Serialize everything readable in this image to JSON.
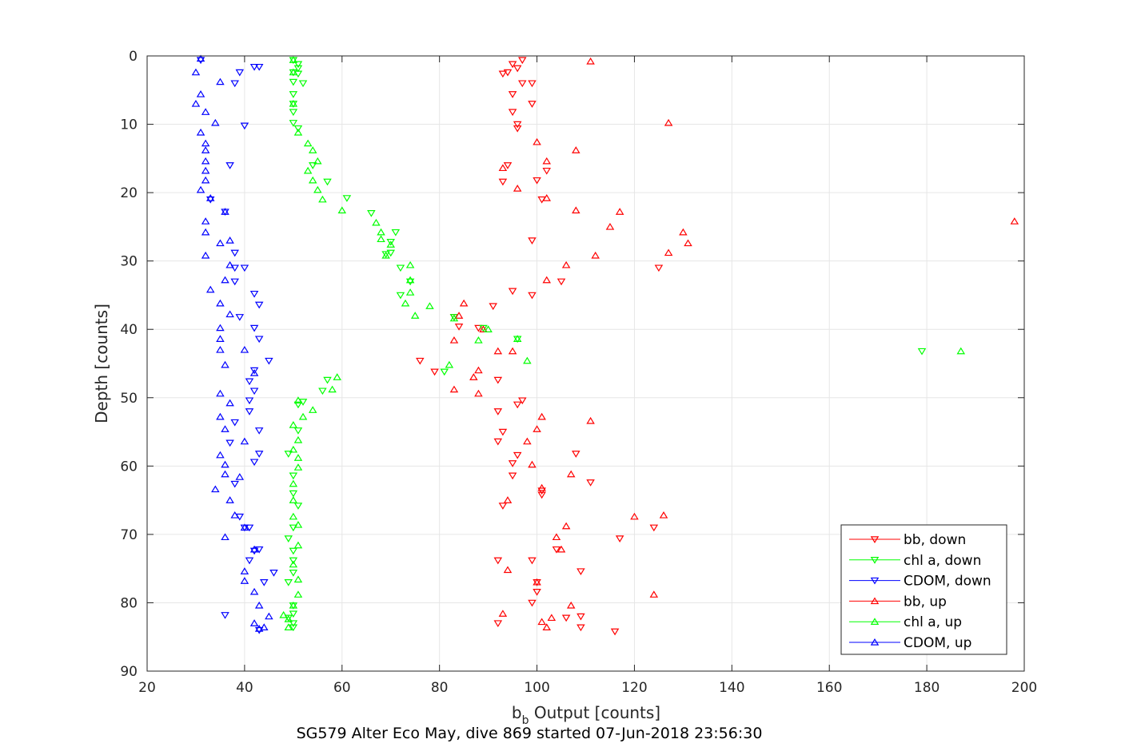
{
  "caption": "SG579 Alter Eco May, dive 869 started 07-Jun-2018 23:56:30",
  "chart_data": {
    "type": "scatter",
    "title": "",
    "xlabel_main": "b",
    "xlabel_sub": "b",
    "xlabel_rest": " Output [counts]",
    "ylabel": "Depth [counts]",
    "xlim": [
      20,
      200
    ],
    "ylim": [
      0,
      90
    ],
    "y_reversed": true,
    "grid": true,
    "legend_position": "bottom-right",
    "x_ticks": [
      20,
      40,
      60,
      80,
      100,
      120,
      140,
      160,
      180,
      200
    ],
    "y_ticks": [
      0,
      10,
      20,
      30,
      40,
      50,
      60,
      70,
      80,
      90
    ],
    "x_tick_labels": [
      "20",
      "40",
      "60",
      "80",
      "100",
      "120",
      "140",
      "160",
      "180",
      "200"
    ],
    "y_tick_labels": [
      "0",
      "10",
      "20",
      "30",
      "40",
      "50",
      "60",
      "70",
      "80",
      "90"
    ],
    "series": [
      {
        "name": "bb, down",
        "color": "#ff0000",
        "marker": "triangle-down",
        "points": [
          [
            97,
            0.6
          ],
          [
            95,
            1.2
          ],
          [
            96,
            1.8
          ],
          [
            94,
            2.4
          ],
          [
            93,
            2.6
          ],
          [
            97,
            4.0
          ],
          [
            99,
            4.0
          ],
          [
            95,
            5.6
          ],
          [
            99,
            7.0
          ],
          [
            95,
            8.2
          ],
          [
            96,
            10.0
          ],
          [
            96,
            10.6
          ],
          [
            94,
            16.0
          ],
          [
            102,
            16.8
          ],
          [
            93,
            18.4
          ],
          [
            100,
            18.2
          ],
          [
            101,
            21.0
          ],
          [
            99,
            27.0
          ],
          [
            125,
            31.0
          ],
          [
            105,
            33.0
          ],
          [
            95,
            34.4
          ],
          [
            99,
            35.0
          ],
          [
            91,
            36.6
          ],
          [
            84,
            39.6
          ],
          [
            83,
            38.2
          ],
          [
            88,
            39.8
          ],
          [
            76,
            44.6
          ],
          [
            79,
            46.2
          ],
          [
            92,
            47.4
          ],
          [
            97,
            50.4
          ],
          [
            96,
            51.0
          ],
          [
            92,
            52.0
          ],
          [
            93,
            55.0
          ],
          [
            92,
            56.4
          ],
          [
            96,
            58.4
          ],
          [
            95,
            59.6
          ],
          [
            108,
            58.2
          ],
          [
            95,
            61.4
          ],
          [
            111,
            62.4
          ],
          [
            101,
            63.6
          ],
          [
            101,
            64.2
          ],
          [
            93,
            65.8
          ],
          [
            124,
            69.0
          ],
          [
            117,
            70.6
          ],
          [
            92,
            73.8
          ],
          [
            104,
            72.2
          ],
          [
            99,
            73.8
          ],
          [
            109,
            75.4
          ],
          [
            100,
            77.0
          ],
          [
            100,
            78.4
          ],
          [
            99,
            80.0
          ],
          [
            106,
            82.2
          ],
          [
            109,
            82.0
          ],
          [
            92,
            83.0
          ],
          [
            109,
            83.6
          ],
          [
            116,
            84.2
          ]
        ]
      },
      {
        "name": "chl a, down",
        "color": "#00ff00",
        "marker": "triangle-down",
        "points": [
          [
            50,
            0.6
          ],
          [
            51,
            1.2
          ],
          [
            51,
            1.8
          ],
          [
            50,
            2.4
          ],
          [
            51,
            2.6
          ],
          [
            50,
            3.8
          ],
          [
            52,
            4.0
          ],
          [
            50,
            5.6
          ],
          [
            50,
            7.0
          ],
          [
            50,
            8.2
          ],
          [
            50,
            9.8
          ],
          [
            51,
            10.6
          ],
          [
            54,
            16.0
          ],
          [
            57,
            18.4
          ],
          [
            61,
            20.8
          ],
          [
            66,
            23.0
          ],
          [
            71,
            25.8
          ],
          [
            70,
            27.2
          ],
          [
            70,
            28.8
          ],
          [
            69,
            29.0
          ],
          [
            72,
            31.0
          ],
          [
            74,
            33.0
          ],
          [
            72,
            35.0
          ],
          [
            83,
            38.2
          ],
          [
            89,
            39.8
          ],
          [
            96,
            41.4
          ],
          [
            81,
            46.2
          ],
          [
            57,
            47.4
          ],
          [
            56,
            49.0
          ],
          [
            52,
            50.6
          ],
          [
            51,
            51.0
          ],
          [
            51,
            54.8
          ],
          [
            49,
            58.2
          ],
          [
            50,
            61.4
          ],
          [
            50,
            64.0
          ],
          [
            51,
            65.8
          ],
          [
            50,
            69.0
          ],
          [
            49,
            70.6
          ],
          [
            50,
            72.4
          ],
          [
            50,
            73.8
          ],
          [
            50,
            75.6
          ],
          [
            49,
            77.0
          ],
          [
            50,
            80.4
          ],
          [
            50,
            81.6
          ],
          [
            49,
            82.2
          ],
          [
            50,
            83.0
          ],
          [
            50,
            83.6
          ],
          [
            179,
            43.2
          ]
        ]
      },
      {
        "name": "CDOM, down",
        "color": "#0000ff",
        "marker": "triangle-down",
        "points": [
          [
            31,
            0.6
          ],
          [
            42,
            1.6
          ],
          [
            43,
            1.6
          ],
          [
            39,
            2.4
          ],
          [
            38,
            4.0
          ],
          [
            40,
            10.2
          ],
          [
            37,
            16.0
          ],
          [
            33,
            21.0
          ],
          [
            36,
            22.8
          ],
          [
            38,
            28.8
          ],
          [
            38,
            31.0
          ],
          [
            40,
            31.0
          ],
          [
            38,
            33.0
          ],
          [
            42,
            34.8
          ],
          [
            43,
            36.4
          ],
          [
            39,
            38.2
          ],
          [
            42,
            39.8
          ],
          [
            43,
            41.4
          ],
          [
            45,
            44.6
          ],
          [
            42,
            46.0
          ],
          [
            41,
            47.6
          ],
          [
            41,
            50.4
          ],
          [
            42,
            49.0
          ],
          [
            38,
            53.6
          ],
          [
            41,
            52.0
          ],
          [
            43,
            54.8
          ],
          [
            37,
            56.6
          ],
          [
            42,
            59.4
          ],
          [
            43,
            58.2
          ],
          [
            38,
            62.6
          ],
          [
            39,
            67.4
          ],
          [
            41,
            69.0
          ],
          [
            40,
            69.0
          ],
          [
            42,
            72.4
          ],
          [
            43,
            72.2
          ],
          [
            41,
            73.8
          ],
          [
            46,
            75.6
          ],
          [
            44,
            77.0
          ],
          [
            36,
            81.8
          ],
          [
            43,
            84.0
          ]
        ]
      },
      {
        "name": "bb, up",
        "color": "#ff0000",
        "marker": "triangle-up",
        "points": [
          [
            111,
            0.8
          ],
          [
            127,
            9.8
          ],
          [
            100,
            12.6
          ],
          [
            108,
            13.8
          ],
          [
            102,
            15.4
          ],
          [
            93,
            16.4
          ],
          [
            96,
            19.4
          ],
          [
            102,
            20.8
          ],
          [
            108,
            22.6
          ],
          [
            117,
            22.8
          ],
          [
            115,
            25.0
          ],
          [
            130,
            25.8
          ],
          [
            198,
            24.2
          ],
          [
            131,
            27.4
          ],
          [
            127,
            28.8
          ],
          [
            112,
            29.2
          ],
          [
            106,
            30.6
          ],
          [
            102,
            32.8
          ],
          [
            85,
            36.2
          ],
          [
            84,
            38.0
          ],
          [
            89,
            40.0
          ],
          [
            92,
            43.2
          ],
          [
            95,
            43.2
          ],
          [
            83,
            41.6
          ],
          [
            88,
            46.0
          ],
          [
            87,
            47.0
          ],
          [
            83,
            48.8
          ],
          [
            88,
            49.4
          ],
          [
            101,
            52.8
          ],
          [
            100,
            54.6
          ],
          [
            111,
            53.4
          ],
          [
            98,
            56.4
          ],
          [
            99,
            59.8
          ],
          [
            107,
            61.2
          ],
          [
            101,
            63.2
          ],
          [
            94,
            65.0
          ],
          [
            120,
            67.4
          ],
          [
            126,
            67.2
          ],
          [
            106,
            68.8
          ],
          [
            104,
            70.4
          ],
          [
            105,
            72.2
          ],
          [
            94,
            75.2
          ],
          [
            100,
            77.0
          ],
          [
            124,
            78.8
          ],
          [
            107,
            80.4
          ],
          [
            93,
            81.6
          ],
          [
            103,
            82.2
          ],
          [
            101,
            82.8
          ],
          [
            102,
            83.6
          ]
        ]
      },
      {
        "name": "chl a, up",
        "color": "#00ff00",
        "marker": "triangle-up",
        "points": [
          [
            50,
            0.6
          ],
          [
            50,
            2.4
          ],
          [
            50,
            7.0
          ],
          [
            51,
            11.2
          ],
          [
            53,
            12.8
          ],
          [
            54,
            13.8
          ],
          [
            55,
            15.4
          ],
          [
            53,
            16.8
          ],
          [
            54,
            18.2
          ],
          [
            55,
            19.6
          ],
          [
            56,
            21.0
          ],
          [
            60,
            22.6
          ],
          [
            67,
            24.4
          ],
          [
            68,
            25.8
          ],
          [
            68,
            26.8
          ],
          [
            70,
            27.6
          ],
          [
            69,
            29.2
          ],
          [
            74,
            30.6
          ],
          [
            74,
            32.8
          ],
          [
            74,
            34.6
          ],
          [
            73,
            36.2
          ],
          [
            78,
            36.6
          ],
          [
            75,
            38.0
          ],
          [
            83,
            38.4
          ],
          [
            90,
            40.0
          ],
          [
            96,
            41.4
          ],
          [
            88,
            41.6
          ],
          [
            98,
            44.6
          ],
          [
            82,
            45.2
          ],
          [
            59,
            47.0
          ],
          [
            58,
            48.8
          ],
          [
            51,
            50.4
          ],
          [
            54,
            51.8
          ],
          [
            52,
            52.8
          ],
          [
            50,
            54.0
          ],
          [
            51,
            56.2
          ],
          [
            50,
            57.6
          ],
          [
            51,
            58.8
          ],
          [
            51,
            60.2
          ],
          [
            50,
            62.6
          ],
          [
            50,
            65.0
          ],
          [
            50,
            67.4
          ],
          [
            51,
            68.6
          ],
          [
            51,
            71.6
          ],
          [
            50,
            74.4
          ],
          [
            51,
            76.6
          ],
          [
            51,
            78.8
          ],
          [
            50,
            80.4
          ],
          [
            48,
            81.8
          ],
          [
            49,
            82.4
          ],
          [
            49,
            83.6
          ],
          [
            187,
            43.2
          ]
        ]
      },
      {
        "name": "CDOM, up",
        "color": "#0000ff",
        "marker": "triangle-up",
        "points": [
          [
            31,
            0.4
          ],
          [
            30,
            2.4
          ],
          [
            35,
            3.8
          ],
          [
            31,
            5.6
          ],
          [
            30,
            7.0
          ],
          [
            32,
            8.2
          ],
          [
            34,
            9.8
          ],
          [
            31,
            11.2
          ],
          [
            32,
            12.8
          ],
          [
            32,
            13.8
          ],
          [
            32,
            15.4
          ],
          [
            32,
            16.8
          ],
          [
            32,
            18.2
          ],
          [
            31,
            19.6
          ],
          [
            33,
            20.8
          ],
          [
            36,
            22.8
          ],
          [
            32,
            24.2
          ],
          [
            32,
            25.8
          ],
          [
            37,
            27.0
          ],
          [
            35,
            27.4
          ],
          [
            32,
            29.2
          ],
          [
            37,
            30.6
          ],
          [
            36,
            32.8
          ],
          [
            33,
            34.2
          ],
          [
            35,
            36.2
          ],
          [
            37,
            37.8
          ],
          [
            35,
            39.8
          ],
          [
            35,
            41.4
          ],
          [
            35,
            43.0
          ],
          [
            40,
            43.0
          ],
          [
            36,
            45.2
          ],
          [
            42,
            46.4
          ],
          [
            35,
            49.4
          ],
          [
            37,
            50.8
          ],
          [
            35,
            52.8
          ],
          [
            36,
            54.6
          ],
          [
            40,
            56.4
          ],
          [
            35,
            58.4
          ],
          [
            36,
            59.8
          ],
          [
            36,
            61.2
          ],
          [
            39,
            61.6
          ],
          [
            34,
            63.4
          ],
          [
            37,
            65.0
          ],
          [
            38,
            67.2
          ],
          [
            40,
            69.0
          ],
          [
            36,
            70.4
          ],
          [
            42,
            72.2
          ],
          [
            40,
            75.4
          ],
          [
            40,
            76.8
          ],
          [
            42,
            78.4
          ],
          [
            43,
            80.4
          ],
          [
            45,
            82.0
          ],
          [
            42,
            83.0
          ],
          [
            44,
            83.6
          ],
          [
            43,
            83.8
          ]
        ]
      }
    ]
  }
}
